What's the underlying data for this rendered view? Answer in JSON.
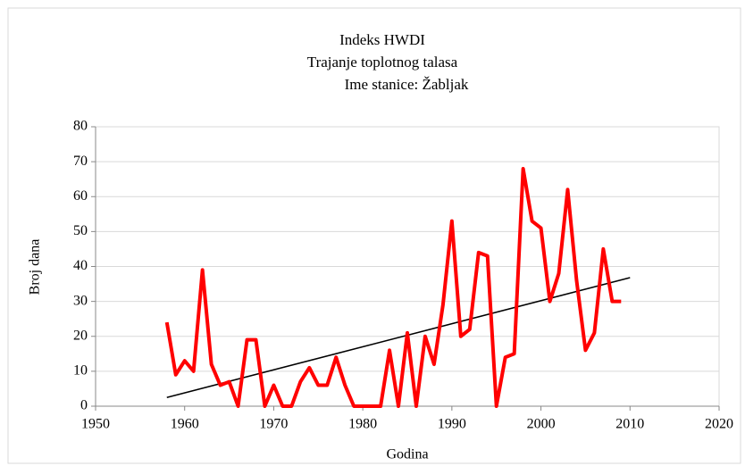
{
  "chart_data": {
    "type": "line",
    "title": [
      "Indeks HWDI",
      "Trajanje toplotnog talasa",
      "Ime stanice: Žabljak"
    ],
    "xlabel": "Godina",
    "ylabel": "Broj dana",
    "x": [
      1958,
      1959,
      1960,
      1961,
      1962,
      1963,
      1964,
      1965,
      1966,
      1967,
      1968,
      1969,
      1970,
      1971,
      1972,
      1973,
      1974,
      1975,
      1976,
      1977,
      1978,
      1979,
      1980,
      1981,
      1982,
      1983,
      1984,
      1985,
      1986,
      1987,
      1988,
      1989,
      1990,
      1991,
      1992,
      1993,
      1994,
      1995,
      1996,
      1997,
      1998,
      1999,
      2000,
      2001,
      2002,
      2003,
      2004,
      2005,
      2006,
      2007,
      2008,
      2009
    ],
    "series": [
      {
        "color": "#ff0000",
        "values": [
          24,
          9,
          13,
          10,
          39,
          12,
          6,
          7,
          0,
          19,
          19,
          0,
          6,
          0,
          0,
          7,
          11,
          6,
          6,
          14,
          6,
          0,
          0,
          0,
          0,
          16,
          0,
          21,
          0,
          20,
          12,
          29,
          53,
          20,
          22,
          44,
          43,
          0,
          14,
          15,
          68,
          53,
          51,
          30,
          38,
          62,
          36,
          16,
          21,
          45,
          30,
          30
        ]
      }
    ],
    "trendline": {
      "color": "#000000",
      "x": [
        1958,
        2010
      ],
      "values": [
        2.5,
        36.8
      ]
    },
    "xlim": [
      1950,
      2020
    ],
    "xticks": [
      1950,
      1960,
      1970,
      1980,
      1990,
      2000,
      2010,
      2020
    ],
    "ylim": [
      0,
      80
    ],
    "yticks": [
      0,
      10,
      20,
      30,
      40,
      50,
      60,
      70,
      80
    ],
    "grid": true
  }
}
